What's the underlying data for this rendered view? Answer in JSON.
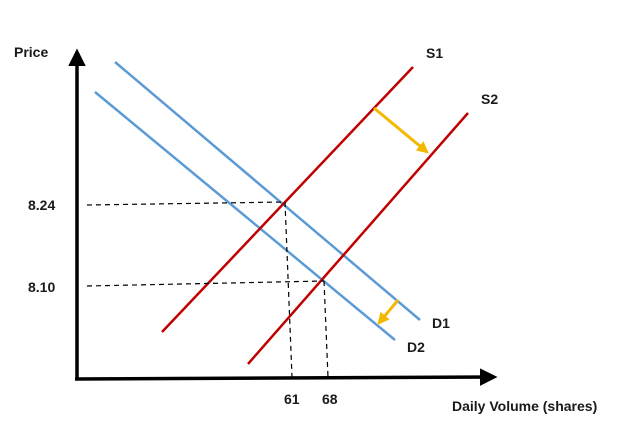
{
  "axes": {
    "y_label": "Price",
    "x_label": "Daily Volume (shares)"
  },
  "ticks": {
    "price_high": "8.24",
    "price_low": "8.10",
    "volume_low": "61",
    "volume_high": "68"
  },
  "curves": {
    "supply_1": "S1",
    "supply_2": "S2",
    "demand_1": "D1",
    "demand_2": "D2"
  },
  "colors": {
    "supply": "#c00000",
    "demand": "#5b9bd5",
    "shift_arrow": "#f5b800",
    "axis": "#000000",
    "guide": "#000000"
  }
}
